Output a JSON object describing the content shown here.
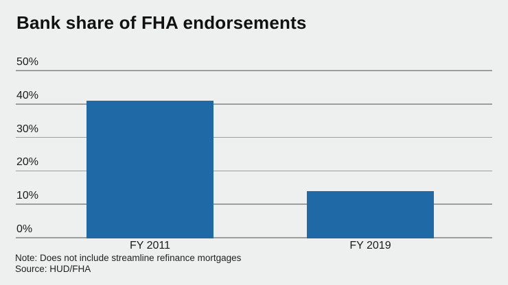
{
  "header": {
    "title": "Bank share of FHA endorsements"
  },
  "footer": {
    "note": "Note: Does not include streamline refinance mortgages",
    "source": "Source: HUD/FHA"
  },
  "colors": {
    "background": "#eef0ef",
    "bar": "#1e69a6",
    "gridline": "#9b9e9d",
    "axis_text": "#1a1a1a",
    "title_text": "#111111",
    "footer_text": "#202020"
  },
  "chart_data": {
    "type": "bar",
    "categories": [
      "FY 2011",
      "FY 2019"
    ],
    "values": [
      41,
      14
    ],
    "title": "Bank share of FHA endorsements",
    "xlabel": "",
    "ylabel": "",
    "ylim": [
      0,
      50
    ],
    "ytick_values": [
      0,
      10,
      20,
      30,
      40,
      50
    ],
    "ytick_labels": [
      "0%",
      "10%",
      "20%",
      "30%",
      "40%",
      "50%"
    ],
    "grid": true,
    "legend": false,
    "note": "Note: Does not include streamline refinance mortgages",
    "source": "Source: HUD/FHA"
  }
}
